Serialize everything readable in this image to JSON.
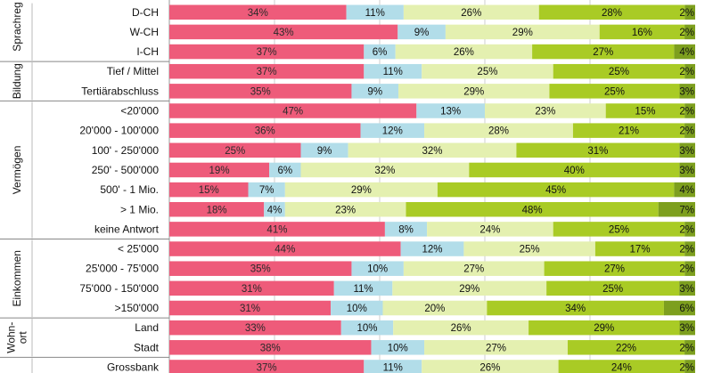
{
  "chart_data": {
    "type": "bar",
    "orientation": "horizontal",
    "stacked": true,
    "normalized": true,
    "xlim": [
      0,
      100
    ],
    "grid": true,
    "title": "",
    "xlabel": "",
    "ylabel": "",
    "colors": [
      "#ee5b7a",
      "#b2dde9",
      "#e4f0b0",
      "#a9cb25",
      "#7d9f1e"
    ],
    "groups": [
      {
        "label": "Sprachreg",
        "start": 0,
        "end": 2
      },
      {
        "label": "Bildung",
        "start": 3,
        "end": 4
      },
      {
        "label": "Vermögen",
        "start": 5,
        "end": 11
      },
      {
        "label": "Einkommen",
        "start": 12,
        "end": 15
      },
      {
        "label": "Wohn- ort",
        "lines": [
          "Wohn-",
          "ort"
        ],
        "start": 16,
        "end": 17
      },
      {
        "label": "",
        "start": 18,
        "end": 18
      }
    ],
    "rows": [
      {
        "category": "D-CH",
        "values": [
          34,
          11,
          26,
          28,
          2
        ],
        "labels": [
          "34%",
          "11%",
          "26%",
          "28%",
          "2%"
        ]
      },
      {
        "category": "W-CH",
        "values": [
          43,
          9,
          29,
          16,
          2
        ],
        "labels": [
          "43%",
          "9%",
          "29%",
          "16%",
          "2%"
        ]
      },
      {
        "category": "I-CH",
        "values": [
          37,
          6,
          26,
          27,
          4
        ],
        "labels": [
          "37%",
          "6%",
          "26%",
          "27%",
          "4%"
        ]
      },
      {
        "category": "Tief / Mittel",
        "values": [
          37,
          11,
          25,
          25,
          2
        ],
        "labels": [
          "37%",
          "11%",
          "25%",
          "25%",
          "2%"
        ]
      },
      {
        "category": "Tertiärabschluss",
        "values": [
          35,
          9,
          29,
          25,
          3
        ],
        "labels": [
          "35%",
          "9%",
          "29%",
          "25%",
          "3%"
        ]
      },
      {
        "category": "<20'000",
        "values": [
          47,
          13,
          23,
          15,
          2
        ],
        "labels": [
          "47%",
          "13%",
          "23%",
          "15%",
          "2%"
        ]
      },
      {
        "category": "20'000 - 100'000",
        "values": [
          36,
          12,
          28,
          21,
          2
        ],
        "labels": [
          "36%",
          "12%",
          "28%",
          "21%",
          "2%"
        ]
      },
      {
        "category": "100' - 250'000",
        "values": [
          25,
          9,
          32,
          31,
          3
        ],
        "labels": [
          "25%",
          "9%",
          "32%",
          "31%",
          "3%"
        ]
      },
      {
        "category": "250' - 500'000",
        "values": [
          19,
          6,
          32,
          40,
          3
        ],
        "labels": [
          "19%",
          "6%",
          "32%",
          "40%",
          "3%"
        ]
      },
      {
        "category": "500' - 1 Mio.",
        "values": [
          15,
          7,
          29,
          45,
          4
        ],
        "labels": [
          "15%",
          "7%",
          "29%",
          "45%",
          "4%"
        ]
      },
      {
        "category": "> 1 Mio.",
        "values": [
          18,
          4,
          23,
          48,
          7
        ],
        "labels": [
          "18%",
          "4%",
          "23%",
          "48%",
          "7%"
        ]
      },
      {
        "category": "keine Antwort",
        "values": [
          41,
          8,
          24,
          25,
          2
        ],
        "labels": [
          "41%",
          "8%",
          "24%",
          "25%",
          "2%"
        ]
      },
      {
        "category": "< 25'000",
        "values": [
          44,
          12,
          25,
          17,
          2
        ],
        "labels": [
          "44%",
          "12%",
          "25%",
          "17%",
          "2%"
        ]
      },
      {
        "category": "25'000 - 75'000",
        "values": [
          35,
          10,
          27,
          27,
          2
        ],
        "labels": [
          "35%",
          "10%",
          "27%",
          "27%",
          "2%"
        ]
      },
      {
        "category": "75'000 - 150'000",
        "values": [
          31,
          11,
          29,
          25,
          3
        ],
        "labels": [
          "31%",
          "11%",
          "29%",
          "25%",
          "3%"
        ]
      },
      {
        "category": ">150'000",
        "values": [
          31,
          10,
          20,
          34,
          6
        ],
        "labels": [
          "31%",
          "10%",
          "20%",
          "34%",
          "6%"
        ]
      },
      {
        "category": "Land",
        "values": [
          33,
          10,
          26,
          29,
          3
        ],
        "labels": [
          "33%",
          "10%",
          "26%",
          "29%",
          "3%"
        ]
      },
      {
        "category": "Stadt",
        "values": [
          38,
          10,
          27,
          22,
          2
        ],
        "labels": [
          "38%",
          "10%",
          "27%",
          "22%",
          "2%"
        ]
      },
      {
        "category": "Grossbank",
        "values": [
          37,
          11,
          26,
          24,
          2
        ],
        "labels": [
          "37%",
          "11%",
          "26%",
          "24%",
          "2%"
        ]
      }
    ]
  }
}
